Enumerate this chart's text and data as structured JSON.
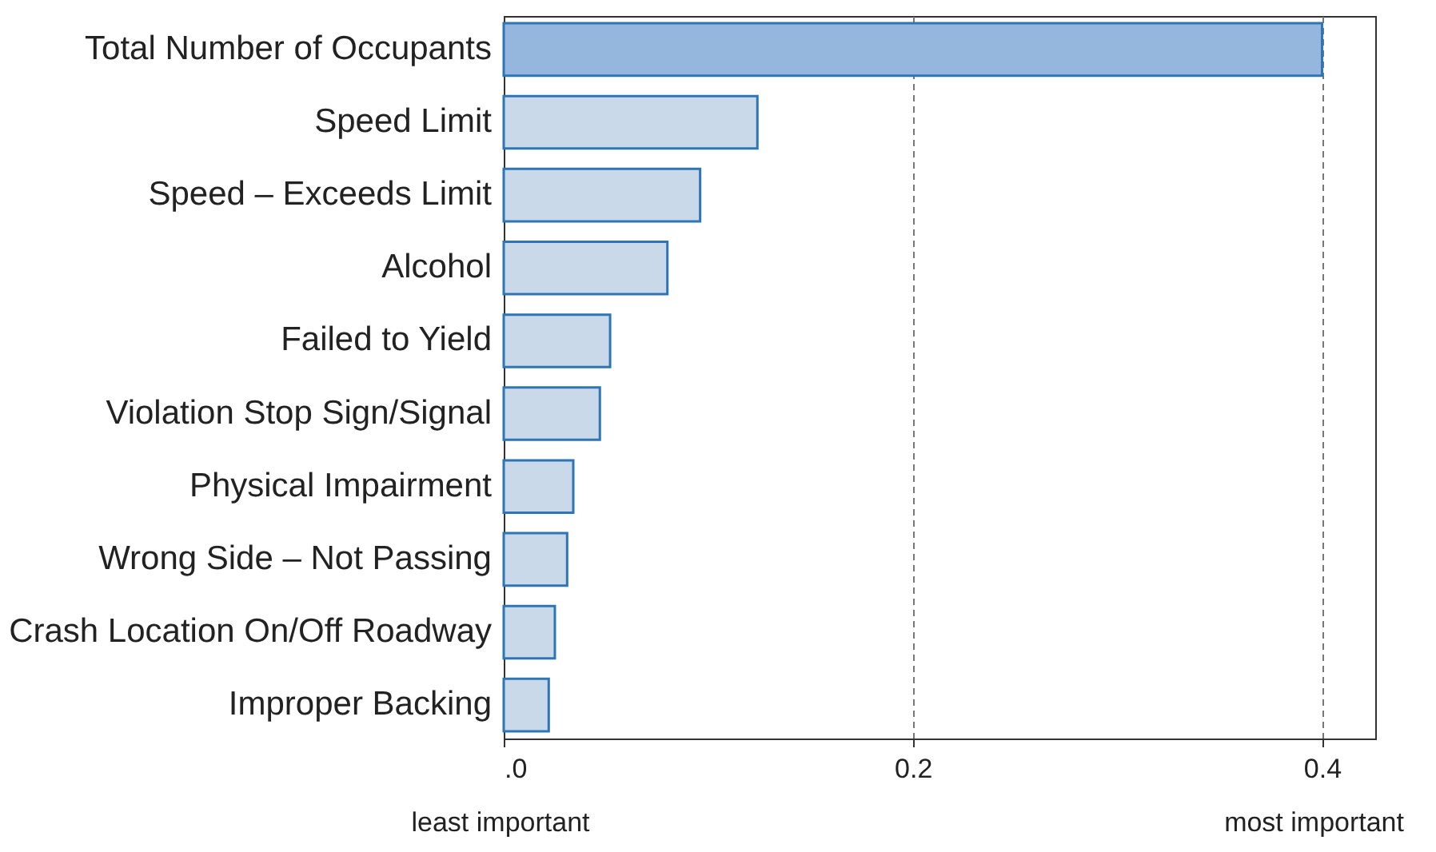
{
  "chart_data": {
    "type": "bar",
    "orientation": "horizontal",
    "categories": [
      "Total Number of Occupants",
      "Speed Limit",
      "Speed – Exceeds Limit",
      "Alcohol",
      "Failed to Yield",
      "Violation  Stop Sign/Signal",
      "Physical Impairment",
      "Wrong Side – Not Passing",
      "Crash Location On/Off Roadway",
      "Improper Backing"
    ],
    "values": [
      0.4,
      0.124,
      0.096,
      0.08,
      0.052,
      0.047,
      0.034,
      0.031,
      0.025,
      0.022
    ],
    "colors": [
      "#95b7de",
      "#c9d9ea",
      "#c9d9ea",
      "#c9d9ea",
      "#c9d9ea",
      "#c9d9ea",
      "#c9d9ea",
      "#c9d9ea",
      "#c9d9ea",
      "#c9d9ea"
    ],
    "xlim": [
      0,
      0.426
    ],
    "xticks": [
      {
        "value": 0,
        "label": ".0"
      },
      {
        "value": 0.2,
        "label": "0.2"
      },
      {
        "value": 0.4,
        "label": "0.4"
      }
    ],
    "grid": "x",
    "annotations": [
      "least important",
      "most important"
    ]
  }
}
